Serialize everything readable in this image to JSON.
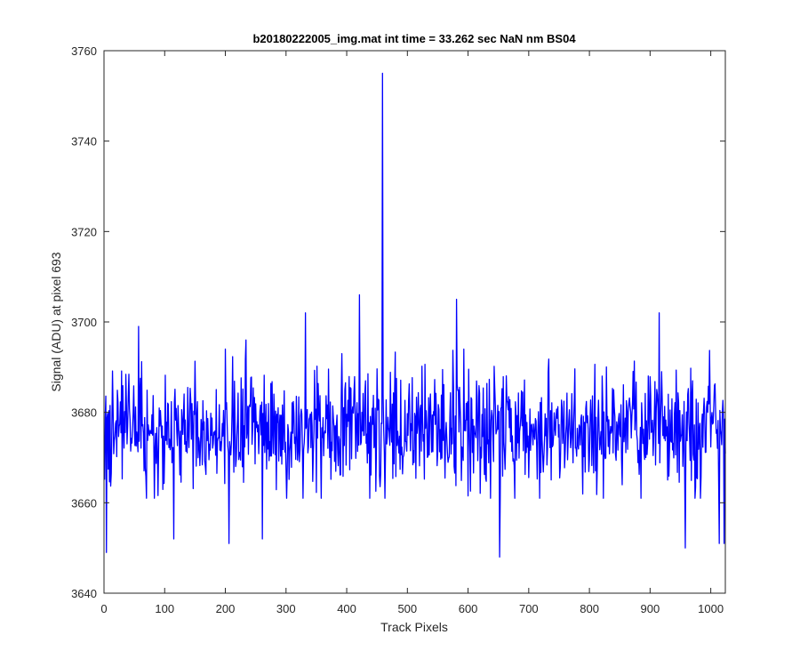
{
  "chart_data": {
    "type": "line",
    "title": "b20180222005_img.mat int time = 33.262 sec  NaN nm BS04",
    "xlabel": "Track Pixels",
    "ylabel": "Signal (ADU) at pixel 693",
    "xlim": [
      0,
      1024
    ],
    "ylim": [
      3640,
      3760
    ],
    "xticks": [
      0,
      100,
      200,
      300,
      400,
      500,
      600,
      700,
      800,
      900,
      1000
    ],
    "yticks": [
      3640,
      3660,
      3680,
      3700,
      3720,
      3740,
      3760
    ],
    "grid": false,
    "legend": "none",
    "series": [
      {
        "color": "#0000ff",
        "baseline": 3676,
        "x_range": [
          1,
          1024
        ],
        "notable_points": [
          {
            "x": 4,
            "y": 3649
          },
          {
            "x": 57,
            "y": 3699
          },
          {
            "x": 115,
            "y": 3652
          },
          {
            "x": 206,
            "y": 3651
          },
          {
            "x": 234,
            "y": 3696
          },
          {
            "x": 261,
            "y": 3652
          },
          {
            "x": 332,
            "y": 3702
          },
          {
            "x": 421,
            "y": 3706
          },
          {
            "x": 459,
            "y": 3755
          },
          {
            "x": 581,
            "y": 3705
          },
          {
            "x": 652,
            "y": 3648
          },
          {
            "x": 915,
            "y": 3702
          },
          {
            "x": 958,
            "y": 3650
          },
          {
            "x": 1014,
            "y": 3651
          },
          {
            "x": 1022,
            "y": 3651
          }
        ]
      }
    ]
  }
}
